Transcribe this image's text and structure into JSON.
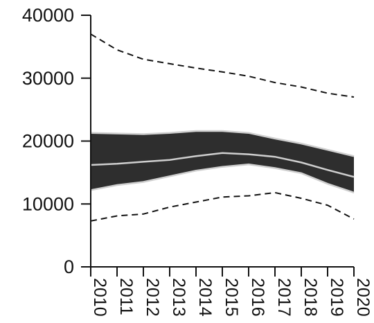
{
  "chart_data": {
    "type": "area",
    "title": "",
    "xlabel": "",
    "ylabel": "",
    "x": [
      2010,
      2011,
      2012,
      2013,
      2014,
      2015,
      2016,
      2017,
      2018,
      2019,
      2020
    ],
    "xtick_labels": [
      "2010",
      "2011",
      "2012",
      "2013",
      "2014",
      "2015",
      "2016",
      "2017",
      "2018",
      "2019",
      "2020"
    ],
    "ylim": [
      0,
      40000
    ],
    "yticks": [
      0,
      10000,
      20000,
      30000,
      40000
    ],
    "ytick_labels": [
      "0",
      "10000",
      "20000",
      "30000",
      "40000"
    ],
    "grid": false,
    "series": [
      {
        "style": "dashed",
        "values": [
          37000,
          34500,
          33000,
          32300,
          31600,
          31000,
          30300,
          29300,
          28600,
          27600,
          27000
        ]
      },
      {
        "style": "band",
        "upper": [
          21300,
          21200,
          21100,
          21300,
          21600,
          21600,
          21300,
          20400,
          19600,
          18600,
          17600
        ],
        "mid": [
          16200,
          16400,
          16700,
          17000,
          17600,
          18100,
          17900,
          17500,
          16600,
          15400,
          14300
        ],
        "lower": [
          12200,
          13000,
          13500,
          14400,
          15300,
          15900,
          16300,
          15700,
          14900,
          13200,
          11800
        ]
      },
      {
        "style": "dashed",
        "values": [
          7300,
          8100,
          8400,
          9500,
          10300,
          11100,
          11300,
          11800,
          10900,
          9800,
          7600
        ]
      }
    ],
    "colors": {
      "band_fill": "#2e2e2e",
      "band_edge": "#cfcfcf",
      "line": "#111111"
    }
  }
}
